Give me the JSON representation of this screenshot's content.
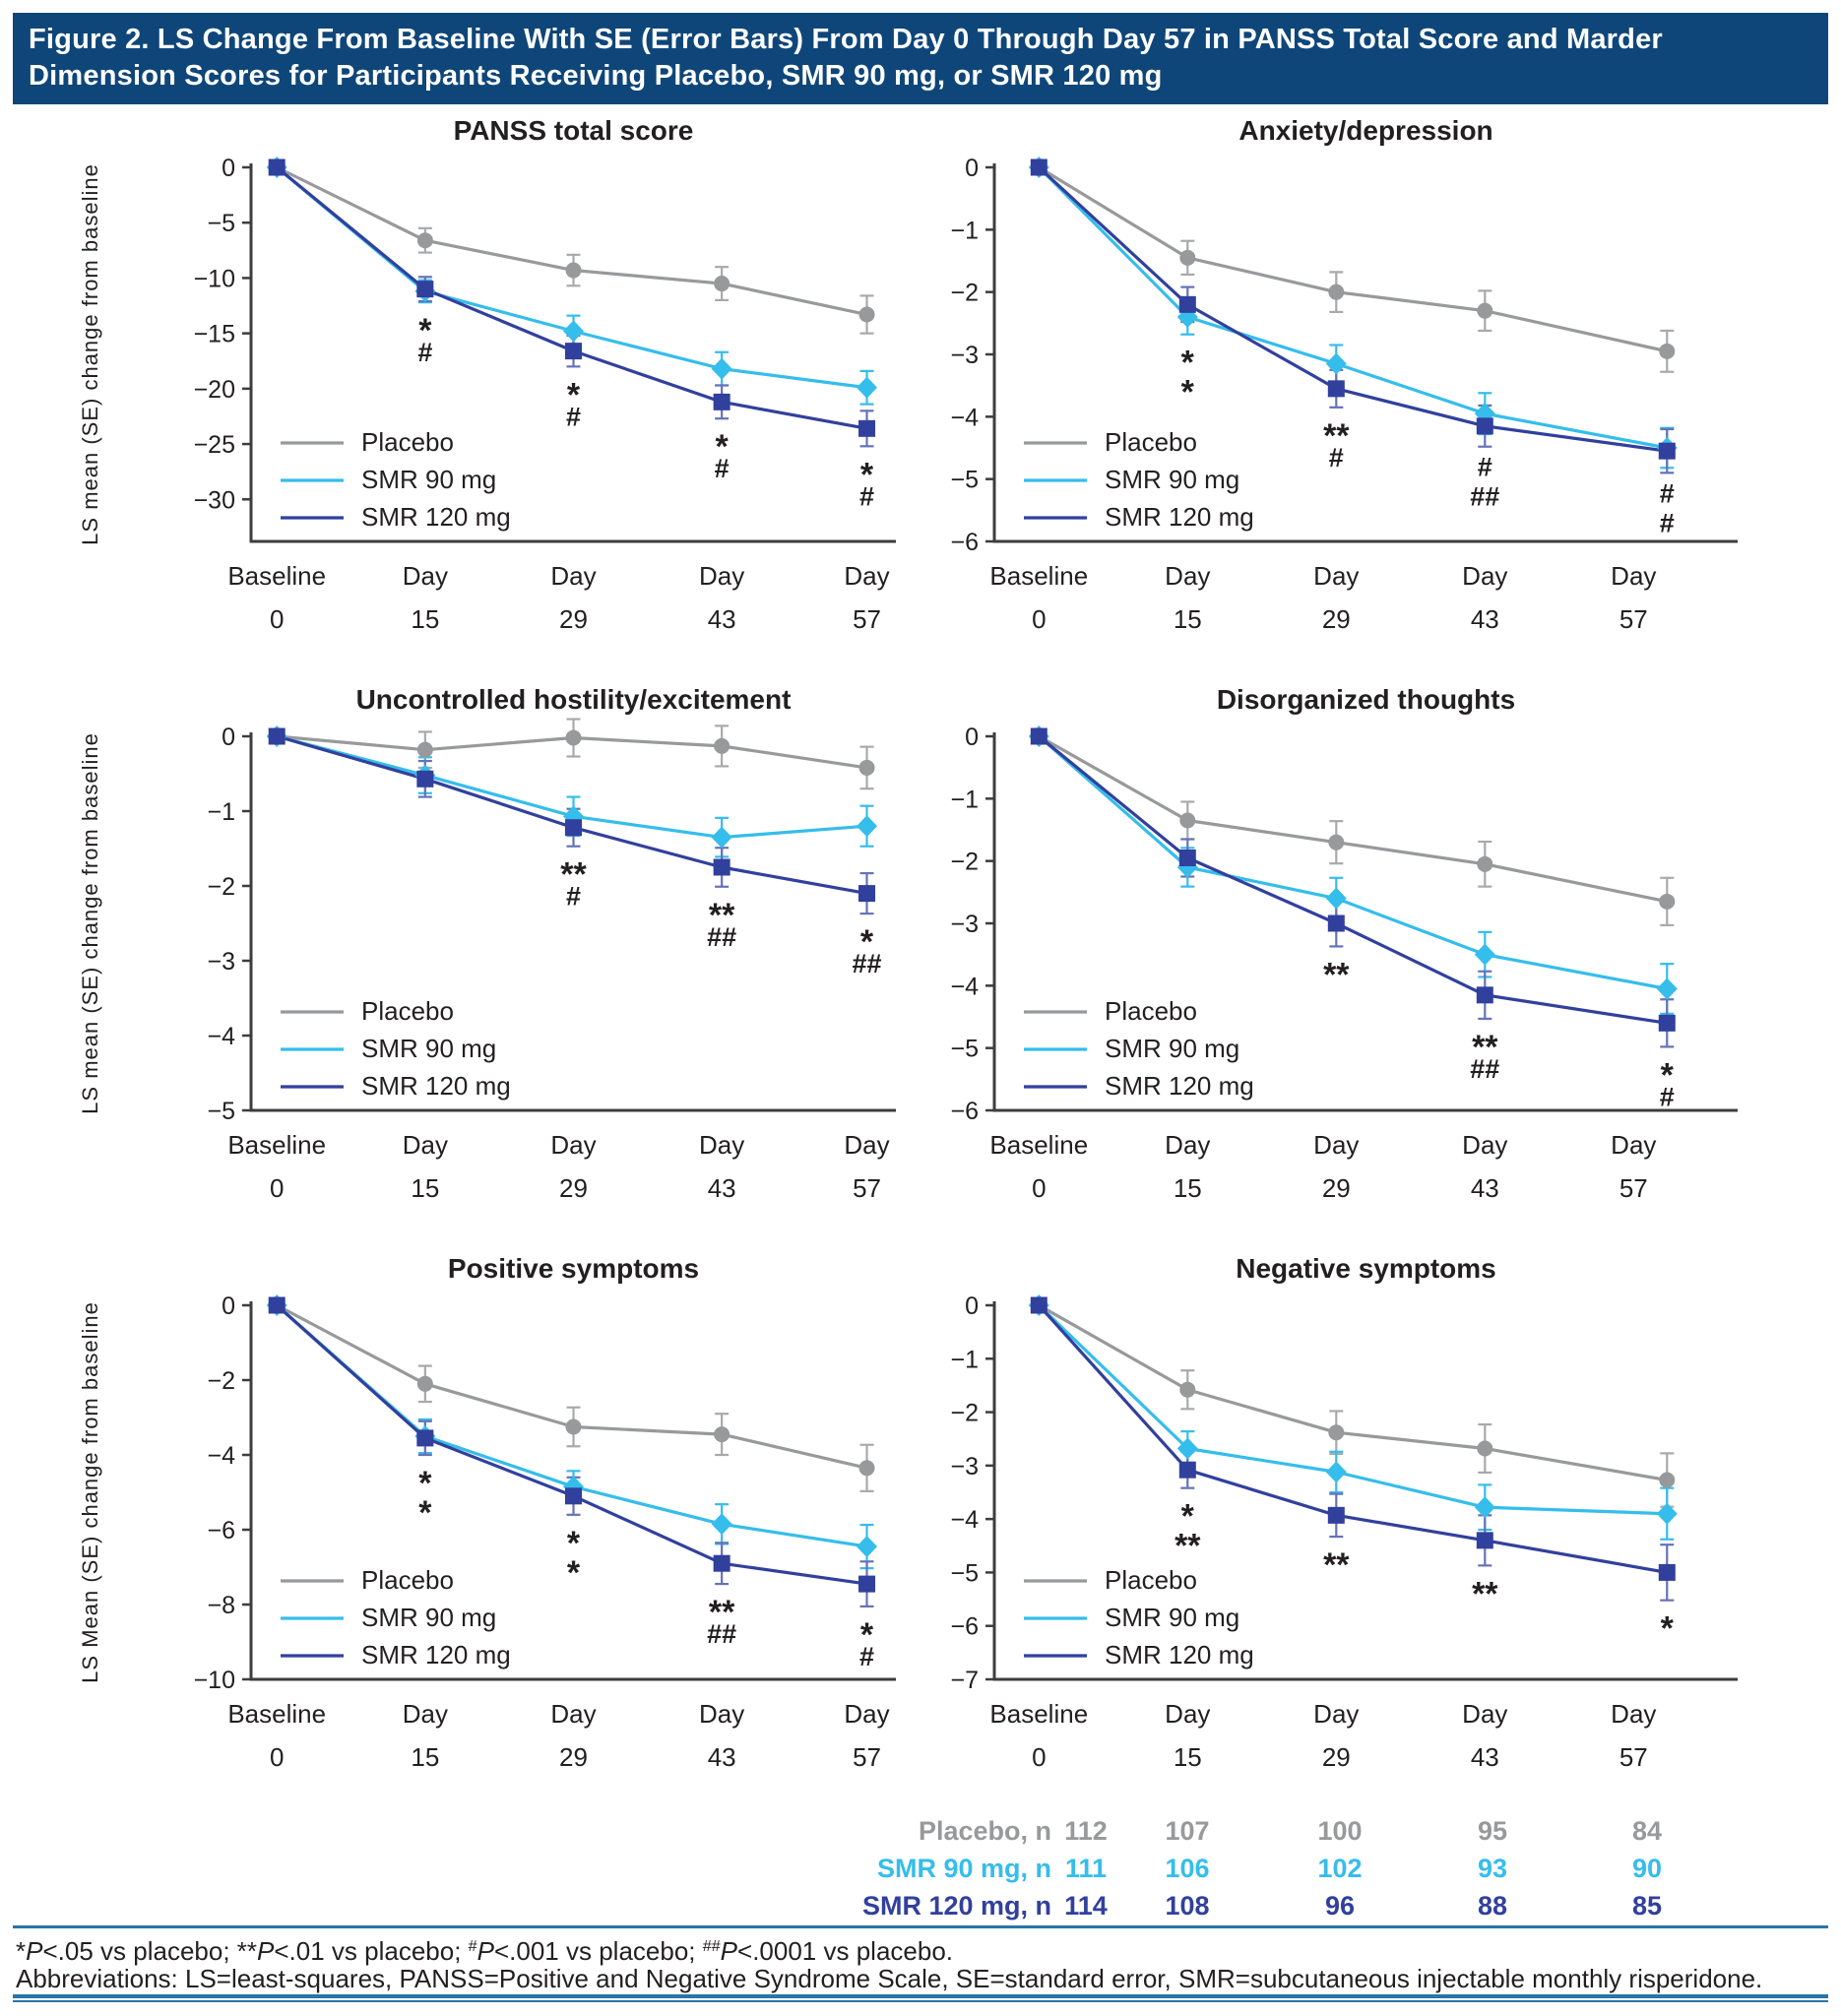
{
  "header": {
    "title_line1": "Figure 2. LS Change From Baseline With SE (Error Bars) From Day 0 Through Day 57 in PANSS Total Score and Marder",
    "title_line2": "Dimension Scores for Participants Receiving Placebo, SMR 90 mg, or SMR 120 mg"
  },
  "colors": {
    "header_bg": "#0f4679",
    "rule": "#2a74a8",
    "axis": "#3d3d3f",
    "text": "#231f20",
    "placebo": "#98999b",
    "smr90": "#35bdec",
    "smr120": "#31409d",
    "placebo_err": "#a8a9ab",
    "smr90_err": "#35bdec",
    "smr120_err": "#6672b8"
  },
  "legend_labels": [
    "Placebo",
    "SMR 90 mg",
    "SMR 120 mg"
  ],
  "x_axis": {
    "top": [
      "Baseline",
      "Day",
      "Day",
      "Day",
      "Day"
    ],
    "bottom": [
      "0",
      "15",
      "29",
      "43",
      "57"
    ]
  },
  "chart_data": [
    {
      "type": "line",
      "title": "PANSS total score",
      "y_label": "LS mean (SE) change from baseline",
      "col": "left",
      "x_categories": [
        "Baseline 0",
        "Day 15",
        "Day 29",
        "Day 43",
        "Day 57"
      ],
      "yticks": [
        0,
        -5,
        -10,
        -15,
        -20,
        -25,
        -30
      ],
      "ymin_display": -33.8,
      "series": [
        {
          "name": "Placebo",
          "key": "placebo",
          "marker": "circle",
          "values": [
            0,
            -6.6,
            -9.3,
            -10.5,
            -13.3
          ],
          "se": [
            0,
            1.1,
            1.4,
            1.5,
            1.7
          ]
        },
        {
          "name": "SMR 90 mg",
          "key": "smr90",
          "marker": "diamond",
          "values": [
            0,
            -11.2,
            -14.8,
            -18.2,
            -19.9
          ],
          "se": [
            0,
            1.0,
            1.4,
            1.5,
            1.5
          ]
        },
        {
          "name": "SMR 120 mg",
          "key": "smr120",
          "marker": "square",
          "values": [
            0,
            -11.0,
            -16.6,
            -21.2,
            -23.6
          ],
          "se": [
            0,
            1.1,
            1.4,
            1.5,
            1.6
          ]
        }
      ],
      "sig": [
        {
          "day": 1,
          "marks": [
            {
              "t": "*",
              "key": "smr90"
            },
            {
              "t": "#",
              "key": "smr120"
            }
          ]
        },
        {
          "day": 2,
          "marks": [
            {
              "t": "*",
              "key": "smr90"
            },
            {
              "t": "#",
              "key": "smr120"
            }
          ]
        },
        {
          "day": 3,
          "marks": [
            {
              "t": "*",
              "key": "smr90"
            },
            {
              "t": "#",
              "key": "smr120"
            }
          ]
        },
        {
          "day": 4,
          "marks": [
            {
              "t": "*",
              "key": "smr90"
            },
            {
              "t": "#",
              "key": "smr120"
            }
          ]
        }
      ]
    },
    {
      "type": "line",
      "title": "Anxiety/depression",
      "y_label": null,
      "col": "right",
      "x_categories": [
        "Baseline 0",
        "Day 15",
        "Day 29",
        "Day 43",
        "Day 57"
      ],
      "yticks": [
        0,
        -1,
        -2,
        -3,
        -4,
        -5,
        -6
      ],
      "ymin_display": -6,
      "series": [
        {
          "name": "Placebo",
          "key": "placebo",
          "marker": "circle",
          "values": [
            0,
            -1.45,
            -2.0,
            -2.3,
            -2.95
          ],
          "se": [
            0,
            0.27,
            0.32,
            0.32,
            0.33
          ]
        },
        {
          "name": "SMR 90 mg",
          "key": "smr90",
          "marker": "diamond",
          "values": [
            0,
            -2.4,
            -3.15,
            -3.95,
            -4.5
          ],
          "se": [
            0,
            0.28,
            0.3,
            0.33,
            0.32
          ]
        },
        {
          "name": "SMR 120 mg",
          "key": "smr120",
          "marker": "square",
          "values": [
            0,
            -2.2,
            -3.55,
            -4.15,
            -4.55
          ],
          "se": [
            0,
            0.28,
            0.3,
            0.33,
            0.35
          ]
        }
      ],
      "sig": [
        {
          "day": 1,
          "marks": [
            {
              "t": "*",
              "key": "smr90"
            },
            {
              "t": "*",
              "key": "smr120"
            }
          ]
        },
        {
          "day": 2,
          "marks": [
            {
              "t": "**",
              "key": "smr90"
            },
            {
              "t": "#",
              "key": "smr120"
            }
          ]
        },
        {
          "day": 3,
          "marks": [
            {
              "t": "#",
              "key": "smr90"
            },
            {
              "t": "##",
              "key": "smr120"
            }
          ]
        },
        {
          "day": 4,
          "marks": [
            {
              "t": "#",
              "key": "smr90"
            },
            {
              "t": "#",
              "key": "smr120"
            }
          ]
        }
      ]
    },
    {
      "type": "line",
      "title": "Uncontrolled hostility/excitement",
      "y_label": "LS mean (SE) change from baseline",
      "col": "left",
      "x_categories": [
        "Baseline 0",
        "Day 15",
        "Day 29",
        "Day 43",
        "Day 57"
      ],
      "yticks": [
        0,
        -1,
        -2,
        -3,
        -4,
        -5
      ],
      "ymin_display": -5,
      "series": [
        {
          "name": "Placebo",
          "key": "placebo",
          "marker": "circle",
          "values": [
            0,
            -0.18,
            -0.02,
            -0.13,
            -0.42
          ],
          "se": [
            0,
            0.24,
            0.25,
            0.27,
            0.28
          ]
        },
        {
          "name": "SMR 90 mg",
          "key": "smr90",
          "marker": "diamond",
          "values": [
            0,
            -0.52,
            -1.07,
            -1.35,
            -1.2
          ],
          "se": [
            0,
            0.24,
            0.26,
            0.26,
            0.27
          ]
        },
        {
          "name": "SMR 120 mg",
          "key": "smr120",
          "marker": "square",
          "values": [
            0,
            -0.57,
            -1.22,
            -1.75,
            -2.1
          ],
          "se": [
            0,
            0.24,
            0.25,
            0.26,
            0.27
          ]
        }
      ],
      "sig": [
        {
          "day": 2,
          "marks": [
            {
              "t": "**",
              "key": "smr90"
            },
            {
              "t": "#",
              "key": "smr120"
            }
          ]
        },
        {
          "day": 3,
          "marks": [
            {
              "t": "**",
              "key": "smr90"
            },
            {
              "t": "##",
              "key": "smr120"
            }
          ]
        },
        {
          "day": 4,
          "marks": [
            {
              "t": "*",
              "key": "smr90"
            },
            {
              "t": "##",
              "key": "smr120"
            }
          ]
        }
      ]
    },
    {
      "type": "line",
      "title": "Disorganized thoughts",
      "y_label": null,
      "col": "right",
      "x_categories": [
        "Baseline 0",
        "Day 15",
        "Day 29",
        "Day 43",
        "Day 57"
      ],
      "yticks": [
        0,
        -1,
        -2,
        -3,
        -4,
        -5,
        -6
      ],
      "ymin_display": -6,
      "series": [
        {
          "name": "Placebo",
          "key": "placebo",
          "marker": "circle",
          "values": [
            0,
            -1.35,
            -1.7,
            -2.05,
            -2.65
          ],
          "se": [
            0,
            0.3,
            0.34,
            0.36,
            0.38
          ]
        },
        {
          "name": "SMR 90 mg",
          "key": "smr90",
          "marker": "diamond",
          "values": [
            0,
            -2.1,
            -2.6,
            -3.5,
            -4.05
          ],
          "se": [
            0,
            0.31,
            0.33,
            0.36,
            0.4
          ]
        },
        {
          "name": "SMR 120 mg",
          "key": "smr120",
          "marker": "square",
          "values": [
            0,
            -1.95,
            -3.0,
            -4.15,
            -4.6
          ],
          "se": [
            0,
            0.3,
            0.37,
            0.38,
            0.38
          ]
        }
      ],
      "sig": [
        {
          "day": 2,
          "marks": [
            {
              "t": "**",
              "key": "smr90"
            }
          ]
        },
        {
          "day": 3,
          "marks": [
            {
              "t": "**",
              "key": "smr90"
            },
            {
              "t": "##",
              "key": "smr120"
            }
          ]
        },
        {
          "day": 4,
          "marks": [
            {
              "t": "*",
              "key": "smr90"
            },
            {
              "t": "#",
              "key": "smr120"
            }
          ]
        }
      ]
    },
    {
      "type": "line",
      "title": "Positive symptoms",
      "y_label": "LS Mean (SE) change from baseline",
      "col": "left",
      "x_categories": [
        "Baseline 0",
        "Day 15",
        "Day 29",
        "Day 43",
        "Day 57"
      ],
      "yticks": [
        0,
        -2,
        -4,
        -6,
        -8,
        -10
      ],
      "ymin_display": -10,
      "series": [
        {
          "name": "Placebo",
          "key": "placebo",
          "marker": "circle",
          "values": [
            0,
            -2.1,
            -3.25,
            -3.45,
            -4.35
          ],
          "se": [
            0,
            0.48,
            0.52,
            0.55,
            0.62
          ]
        },
        {
          "name": "SMR 90 mg",
          "key": "smr90",
          "marker": "diamond",
          "values": [
            0,
            -3.5,
            -4.85,
            -5.85,
            -6.45
          ],
          "se": [
            0,
            0.45,
            0.42,
            0.53,
            0.58
          ]
        },
        {
          "name": "SMR 120 mg",
          "key": "smr120",
          "marker": "square",
          "values": [
            0,
            -3.55,
            -5.1,
            -6.9,
            -7.45
          ],
          "se": [
            0,
            0.45,
            0.5,
            0.55,
            0.6
          ]
        }
      ],
      "sig": [
        {
          "day": 1,
          "marks": [
            {
              "t": "*",
              "key": "smr90"
            },
            {
              "t": "*",
              "key": "smr120"
            }
          ]
        },
        {
          "day": 2,
          "marks": [
            {
              "t": "*",
              "key": "smr90"
            },
            {
              "t": "*",
              "key": "smr120"
            }
          ]
        },
        {
          "day": 3,
          "marks": [
            {
              "t": "**",
              "key": "smr90"
            },
            {
              "t": "##",
              "key": "smr120"
            }
          ]
        },
        {
          "day": 4,
          "marks": [
            {
              "t": "*",
              "key": "smr90"
            },
            {
              "t": "#",
              "key": "smr120"
            }
          ]
        }
      ]
    },
    {
      "type": "line",
      "title": "Negative symptoms",
      "y_label": null,
      "col": "right",
      "x_categories": [
        "Baseline 0",
        "Day 15",
        "Day 29",
        "Day 43",
        "Day 57"
      ],
      "yticks": [
        0,
        -1,
        -2,
        -3,
        -4,
        -5,
        -6,
        -7
      ],
      "ymin_display": -7,
      "series": [
        {
          "name": "Placebo",
          "key": "placebo",
          "marker": "circle",
          "values": [
            0,
            -1.58,
            -2.38,
            -2.68,
            -3.27
          ],
          "se": [
            0,
            0.36,
            0.4,
            0.45,
            0.5
          ]
        },
        {
          "name": "SMR 90 mg",
          "key": "smr90",
          "marker": "diamond",
          "values": [
            0,
            -2.68,
            -3.12,
            -3.78,
            -3.9
          ],
          "se": [
            0,
            0.32,
            0.38,
            0.42,
            0.48
          ]
        },
        {
          "name": "SMR 120 mg",
          "key": "smr120",
          "marker": "square",
          "values": [
            0,
            -3.08,
            -3.93,
            -4.4,
            -5.0
          ],
          "se": [
            0,
            0.34,
            0.4,
            0.47,
            0.52
          ]
        }
      ],
      "sig": [
        {
          "day": 1,
          "marks": [
            {
              "t": "*",
              "key": "smr90"
            },
            {
              "t": "**",
              "key": "smr120"
            }
          ]
        },
        {
          "day": 2,
          "marks": [
            {
              "t": "**",
              "key": "smr120"
            }
          ]
        },
        {
          "day": 3,
          "marks": [
            {
              "t": "**",
              "key": "smr120"
            }
          ]
        },
        {
          "day": 4,
          "marks": [
            {
              "t": "*",
              "key": "smr90"
            }
          ]
        }
      ]
    }
  ],
  "n_table": {
    "rows": [
      {
        "label": "Placebo, n",
        "series": "placebo",
        "values": [
          "112",
          "107",
          "100",
          "95",
          "84"
        ]
      },
      {
        "label": "SMR 90 mg, n",
        "series": "smr90",
        "values": [
          "111",
          "106",
          "102",
          "93",
          "90"
        ]
      },
      {
        "label": "SMR 120 mg, n",
        "series": "smr120",
        "values": [
          "114",
          "108",
          "96",
          "88",
          "85"
        ]
      }
    ]
  },
  "footnotes": {
    "line1_segments": [
      {
        "t": "*"
      },
      {
        "t": "P",
        "i": true
      },
      {
        "t": "<.05 vs placebo; **"
      },
      {
        "t": "P",
        "i": true
      },
      {
        "t": "<.01 vs placebo; "
      },
      {
        "t": "#",
        "sup": true
      },
      {
        "t": "P",
        "i": true
      },
      {
        "t": "<.001 vs placebo; "
      },
      {
        "t": "##",
        "sup": true
      },
      {
        "t": "P",
        "i": true
      },
      {
        "t": "<.0001 vs placebo."
      }
    ],
    "line2": "Abbreviations: LS=least-squares, PANSS=Positive and Negative Syndrome Scale, SE=standard error, SMR=subcutaneous injectable monthly risperidone."
  }
}
